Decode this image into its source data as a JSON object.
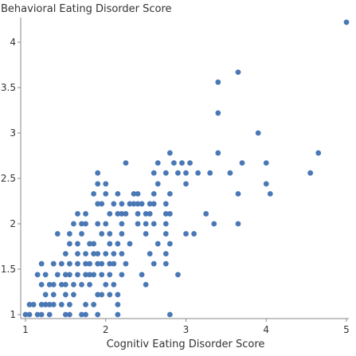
{
  "chart_data": {
    "type": "scatter",
    "title": "",
    "xlabel": "Cognitiv Eating Disorder Score",
    "ylabel": "Behavioral Eating Disorder Score",
    "xlim": [
      1,
      5
    ],
    "ylim": [
      0.95,
      4.3
    ],
    "xticks": [
      1,
      2,
      3,
      4,
      5
    ],
    "yticks": [
      1,
      1.5,
      2,
      2.5,
      3,
      3.5,
      4
    ],
    "grid": false,
    "legend": "none",
    "point_color": "#4a78b5",
    "points": [
      [
        1.0,
        1.0
      ],
      [
        1.05,
        1.0
      ],
      [
        1.15,
        1.0
      ],
      [
        1.2,
        1.0
      ],
      [
        1.3,
        1.0
      ],
      [
        1.5,
        1.0
      ],
      [
        1.55,
        1.0
      ],
      [
        1.7,
        1.0
      ],
      [
        1.75,
        1.0
      ],
      [
        1.9,
        1.0
      ],
      [
        2.15,
        1.0
      ],
      [
        2.8,
        1.0
      ],
      [
        1.05,
        1.11
      ],
      [
        1.1,
        1.11
      ],
      [
        1.2,
        1.11
      ],
      [
        1.25,
        1.11
      ],
      [
        1.3,
        1.11
      ],
      [
        1.35,
        1.11
      ],
      [
        1.45,
        1.11
      ],
      [
        1.55,
        1.11
      ],
      [
        1.75,
        1.11
      ],
      [
        1.85,
        1.11
      ],
      [
        2.15,
        1.11
      ],
      [
        1.25,
        1.22
      ],
      [
        1.35,
        1.22
      ],
      [
        1.5,
        1.22
      ],
      [
        1.6,
        1.22
      ],
      [
        1.9,
        1.22
      ],
      [
        1.95,
        1.22
      ],
      [
        2.05,
        1.22
      ],
      [
        2.15,
        1.22
      ],
      [
        1.2,
        1.33
      ],
      [
        1.3,
        1.33
      ],
      [
        1.35,
        1.33
      ],
      [
        1.45,
        1.33
      ],
      [
        1.5,
        1.33
      ],
      [
        1.6,
        1.33
      ],
      [
        1.7,
        1.33
      ],
      [
        1.8,
        1.33
      ],
      [
        2.0,
        1.33
      ],
      [
        2.1,
        1.33
      ],
      [
        2.5,
        1.33
      ],
      [
        1.15,
        1.44
      ],
      [
        1.25,
        1.44
      ],
      [
        1.4,
        1.44
      ],
      [
        1.5,
        1.44
      ],
      [
        1.55,
        1.44
      ],
      [
        1.65,
        1.44
      ],
      [
        1.75,
        1.44
      ],
      [
        1.8,
        1.44
      ],
      [
        1.85,
        1.44
      ],
      [
        1.95,
        1.44
      ],
      [
        2.05,
        1.44
      ],
      [
        2.2,
        1.44
      ],
      [
        2.45,
        1.44
      ],
      [
        2.9,
        1.44
      ],
      [
        1.2,
        1.56
      ],
      [
        1.35,
        1.56
      ],
      [
        1.45,
        1.56
      ],
      [
        1.55,
        1.56
      ],
      [
        1.65,
        1.56
      ],
      [
        1.75,
        1.56
      ],
      [
        1.8,
        1.56
      ],
      [
        1.9,
        1.56
      ],
      [
        1.95,
        1.56
      ],
      [
        2.05,
        1.56
      ],
      [
        2.1,
        1.56
      ],
      [
        2.25,
        1.56
      ],
      [
        2.6,
        1.56
      ],
      [
        2.75,
        1.56
      ],
      [
        1.5,
        1.67
      ],
      [
        1.65,
        1.67
      ],
      [
        1.75,
        1.67
      ],
      [
        1.85,
        1.67
      ],
      [
        1.9,
        1.67
      ],
      [
        2.0,
        1.67
      ],
      [
        2.1,
        1.67
      ],
      [
        2.2,
        1.67
      ],
      [
        2.55,
        1.67
      ],
      [
        2.75,
        1.67
      ],
      [
        1.55,
        1.78
      ],
      [
        1.65,
        1.78
      ],
      [
        1.8,
        1.78
      ],
      [
        1.85,
        1.78
      ],
      [
        2.05,
        1.78
      ],
      [
        2.15,
        1.78
      ],
      [
        2.3,
        1.78
      ],
      [
        2.65,
        1.78
      ],
      [
        2.8,
        1.78
      ],
      [
        1.4,
        1.89
      ],
      [
        1.55,
        1.89
      ],
      [
        1.7,
        1.89
      ],
      [
        1.95,
        1.89
      ],
      [
        2.05,
        1.89
      ],
      [
        2.2,
        1.89
      ],
      [
        2.5,
        1.89
      ],
      [
        2.75,
        1.89
      ],
      [
        3.0,
        1.89
      ],
      [
        3.1,
        1.89
      ],
      [
        1.6,
        2.0
      ],
      [
        1.7,
        2.0
      ],
      [
        1.75,
        2.0
      ],
      [
        1.9,
        2.0
      ],
      [
        2.0,
        2.0
      ],
      [
        2.2,
        2.0
      ],
      [
        2.4,
        2.0
      ],
      [
        2.5,
        2.0
      ],
      [
        2.6,
        2.0
      ],
      [
        2.75,
        2.0
      ],
      [
        3.35,
        2.0
      ],
      [
        3.65,
        2.0
      ],
      [
        1.65,
        2.11
      ],
      [
        1.75,
        2.11
      ],
      [
        2.05,
        2.11
      ],
      [
        2.15,
        2.11
      ],
      [
        2.2,
        2.11
      ],
      [
        2.25,
        2.11
      ],
      [
        2.4,
        2.11
      ],
      [
        2.5,
        2.11
      ],
      [
        2.55,
        2.11
      ],
      [
        2.75,
        2.11
      ],
      [
        2.8,
        2.11
      ],
      [
        3.25,
        2.11
      ],
      [
        1.9,
        2.22
      ],
      [
        1.95,
        2.22
      ],
      [
        2.1,
        2.22
      ],
      [
        2.2,
        2.22
      ],
      [
        2.3,
        2.22
      ],
      [
        2.35,
        2.22
      ],
      [
        2.4,
        2.22
      ],
      [
        2.45,
        2.22
      ],
      [
        2.55,
        2.22
      ],
      [
        2.6,
        2.22
      ],
      [
        2.75,
        2.22
      ],
      [
        1.85,
        2.33
      ],
      [
        2.0,
        2.33
      ],
      [
        2.15,
        2.33
      ],
      [
        2.35,
        2.33
      ],
      [
        2.4,
        2.33
      ],
      [
        2.6,
        2.33
      ],
      [
        2.8,
        2.33
      ],
      [
        3.65,
        2.33
      ],
      [
        4.05,
        2.33
      ],
      [
        1.9,
        2.44
      ],
      [
        2.0,
        2.44
      ],
      [
        2.65,
        2.44
      ],
      [
        3.0,
        2.44
      ],
      [
        4.0,
        2.44
      ],
      [
        1.9,
        2.56
      ],
      [
        2.6,
        2.56
      ],
      [
        2.75,
        2.56
      ],
      [
        2.9,
        2.56
      ],
      [
        3.0,
        2.56
      ],
      [
        3.15,
        2.56
      ],
      [
        3.3,
        2.56
      ],
      [
        3.55,
        2.56
      ],
      [
        4.55,
        2.56
      ],
      [
        2.25,
        2.67
      ],
      [
        2.65,
        2.67
      ],
      [
        2.85,
        2.67
      ],
      [
        2.95,
        2.67
      ],
      [
        3.05,
        2.67
      ],
      [
        3.7,
        2.67
      ],
      [
        4.0,
        2.67
      ],
      [
        2.8,
        2.78
      ],
      [
        3.4,
        2.78
      ],
      [
        4.65,
        2.78
      ],
      [
        3.9,
        3.0
      ],
      [
        3.4,
        3.22
      ],
      [
        3.4,
        3.56
      ],
      [
        3.65,
        3.67
      ],
      [
        5.0,
        4.22
      ]
    ]
  }
}
